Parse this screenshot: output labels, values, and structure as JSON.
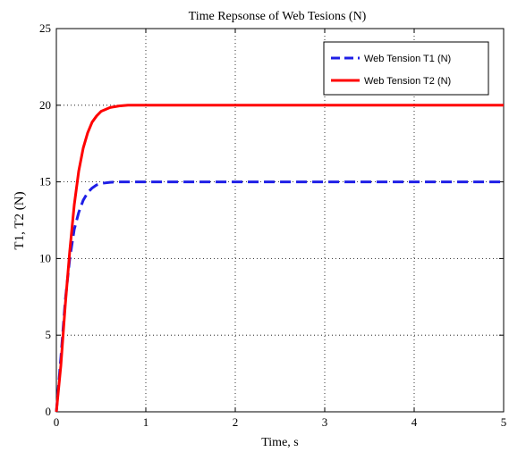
{
  "chart_data": {
    "type": "line",
    "title": "Time Repsonse of Web Tesions (N)",
    "xlabel": "Time, s",
    "ylabel": "T1, T2 (N)",
    "xlim": [
      0,
      5
    ],
    "ylim": [
      0,
      25
    ],
    "xticks": [
      "0",
      "1",
      "2",
      "3",
      "4",
      "5"
    ],
    "yticks": [
      "0",
      "5",
      "10",
      "15",
      "20",
      "25"
    ],
    "grid": true,
    "legend_position": "top-right",
    "series": [
      {
        "name": "Web Tension T1 (N)",
        "color": "#1f1fe6",
        "style": "dashed",
        "x": [
          0,
          0.05,
          0.1,
          0.15,
          0.2,
          0.25,
          0.3,
          0.35,
          0.4,
          0.45,
          0.5,
          0.6,
          0.7,
          0.8,
          1.0,
          1.5,
          2,
          3,
          4,
          5
        ],
        "y": [
          0,
          3.5,
          7.3,
          10.0,
          11.9,
          13.0,
          13.8,
          14.3,
          14.6,
          14.8,
          14.9,
          14.97,
          15.0,
          15.0,
          15.0,
          15.0,
          15.0,
          15.0,
          15.0,
          15.0
        ]
      },
      {
        "name": "Web Tension T2 (N)",
        "color": "#ff0000",
        "style": "solid",
        "x": [
          0,
          0.05,
          0.1,
          0.15,
          0.2,
          0.25,
          0.3,
          0.35,
          0.4,
          0.45,
          0.5,
          0.6,
          0.7,
          0.8,
          1.0,
          1.5,
          2,
          3,
          4,
          5
        ],
        "y": [
          0,
          3.0,
          7.0,
          10.5,
          13.5,
          15.7,
          17.2,
          18.2,
          18.9,
          19.3,
          19.6,
          19.85,
          19.95,
          20.0,
          20.0,
          20.0,
          20.0,
          20.0,
          20.0,
          20.0
        ]
      }
    ]
  }
}
